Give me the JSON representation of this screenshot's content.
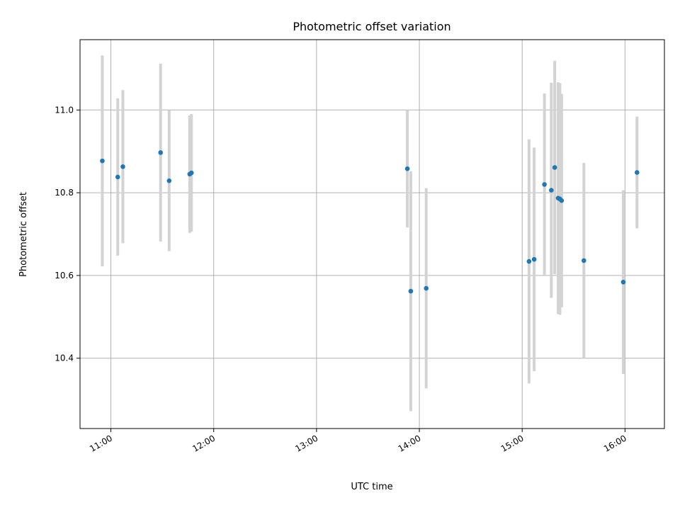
{
  "chart_data": {
    "type": "scatter",
    "title": "Photometric offset variation",
    "xlabel": "UTC time",
    "ylabel": "Photometric offset",
    "x_ticks": [
      "11:00",
      "12:00",
      "13:00",
      "14:00",
      "15:00",
      "16:00"
    ],
    "y_ticks": [
      "10.4",
      "10.6",
      "10.8",
      "11.0"
    ],
    "xlim": [
      "10:42",
      "16:23"
    ],
    "ylim": [
      10.23,
      11.17
    ],
    "grid": true,
    "colors": {
      "point": "#1f77b4",
      "errorbar": "#d3d3d3",
      "grid": "#b0b0b0"
    },
    "points": [
      {
        "x": "10:55",
        "y": 10.877,
        "yerr": 0.255
      },
      {
        "x": "11:04",
        "y": 10.838,
        "yerr": 0.19
      },
      {
        "x": "11:07",
        "y": 10.863,
        "yerr": 0.185
      },
      {
        "x": "11:29",
        "y": 10.897,
        "yerr": 0.215
      },
      {
        "x": "11:34",
        "y": 10.829,
        "yerr": 0.17
      },
      {
        "x": "11:46",
        "y": 10.845,
        "yerr": 0.142
      },
      {
        "x": "11:47",
        "y": 10.848,
        "yerr": 0.142
      },
      {
        "x": "13:53",
        "y": 10.858,
        "yerr": 0.142
      },
      {
        "x": "13:55",
        "y": 10.562,
        "yerr": 0.29
      },
      {
        "x": "14:04",
        "y": 10.569,
        "yerr": 0.242
      },
      {
        "x": "15:04",
        "y": 10.634,
        "yerr": 0.295
      },
      {
        "x": "15:07",
        "y": 10.639,
        "yerr": 0.27
      },
      {
        "x": "15:13",
        "y": 10.82,
        "yerr": 0.22
      },
      {
        "x": "15:17",
        "y": 10.806,
        "yerr": 0.26
      },
      {
        "x": "15:19",
        "y": 10.861,
        "yerr": 0.258
      },
      {
        "x": "15:21",
        "y": 10.787,
        "yerr": 0.28
      },
      {
        "x": "15:22",
        "y": 10.785,
        "yerr": 0.28
      },
      {
        "x": "15:23",
        "y": 10.781,
        "yerr": 0.258
      },
      {
        "x": "15:36",
        "y": 10.636,
        "yerr": 0.236
      },
      {
        "x": "15:59",
        "y": 10.584,
        "yerr": 0.222
      },
      {
        "x": "16:07",
        "y": 10.849,
        "yerr": 0.135
      }
    ]
  }
}
